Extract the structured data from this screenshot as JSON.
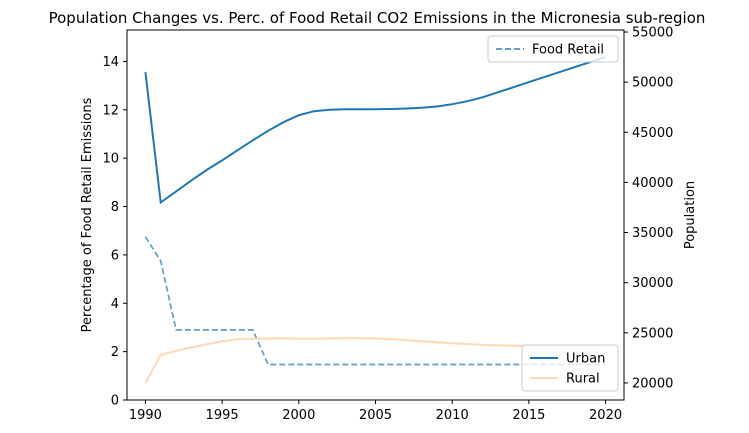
{
  "chart_data": {
    "type": "line",
    "title": "Population Changes vs. Perc. of Food Retail CO2 Emissions in the Micronesia sub-region",
    "xlabel": "",
    "ylabel_left": "Percentage of Food Retail Emissions",
    "ylabel_right": "Population",
    "xlim": [
      1988.8,
      2021.2
    ],
    "ylim_left": [
      0,
      15.3
    ],
    "ylim_right": [
      18300,
      55200
    ],
    "x_ticks": [
      1990,
      1995,
      2000,
      2005,
      2010,
      2015,
      2020
    ],
    "y_left_ticks": [
      0,
      2,
      4,
      6,
      8,
      10,
      12,
      14
    ],
    "y_right_ticks": [
      20000,
      25000,
      30000,
      35000,
      40000,
      45000,
      50000,
      55000
    ],
    "x": [
      1990,
      1991,
      1992,
      1993,
      1994,
      1995,
      1996,
      1997,
      1998,
      1999,
      2000,
      2001,
      2002,
      2003,
      2004,
      2005,
      2006,
      2007,
      2008,
      2009,
      2010,
      2011,
      2012,
      2013,
      2014,
      2015,
      2016,
      2017,
      2018,
      2019,
      2020
    ],
    "series": [
      {
        "name": "Food Retail",
        "axis": "left",
        "style": "dashed",
        "color": "#1f77b4",
        "values": [
          6.75,
          5.75,
          2.9,
          2.9,
          2.9,
          2.9,
          2.9,
          2.9,
          1.47,
          1.47,
          1.47,
          1.47,
          1.47,
          1.47,
          1.47,
          1.47,
          1.47,
          1.47,
          1.47,
          1.47,
          1.47,
          1.47,
          1.47,
          1.47,
          1.47,
          1.47,
          1.47,
          1.47,
          1.47,
          1.47,
          1.47
        ]
      },
      {
        "name": "Urban",
        "axis": "right",
        "style": "solid",
        "color": "#1f77b4",
        "values": [
          51000,
          38000,
          39100,
          40200,
          41250,
          42200,
          43200,
          44200,
          45150,
          46000,
          46700,
          47100,
          47250,
          47300,
          47300,
          47300,
          47320,
          47370,
          47450,
          47570,
          47800,
          48100,
          48500,
          49000,
          49500,
          50000,
          50500,
          51000,
          51500,
          52000,
          52500
        ]
      },
      {
        "name": "Rural",
        "axis": "right",
        "style": "solid",
        "color": "#ffd9b3",
        "values": [
          20000,
          22800,
          23200,
          23550,
          23850,
          24150,
          24350,
          24420,
          24430,
          24450,
          24400,
          24400,
          24430,
          24450,
          24450,
          24430,
          24370,
          24250,
          24150,
          24050,
          23950,
          23870,
          23800,
          23750,
          23720,
          23700,
          23700,
          23700,
          23700,
          23700,
          23700
        ]
      }
    ],
    "legend_left": {
      "placement": "upper right",
      "entries": [
        "Food Retail"
      ]
    },
    "legend_right": {
      "placement": "lower right",
      "entries": [
        "Urban",
        "Rural"
      ]
    },
    "grid": false
  }
}
